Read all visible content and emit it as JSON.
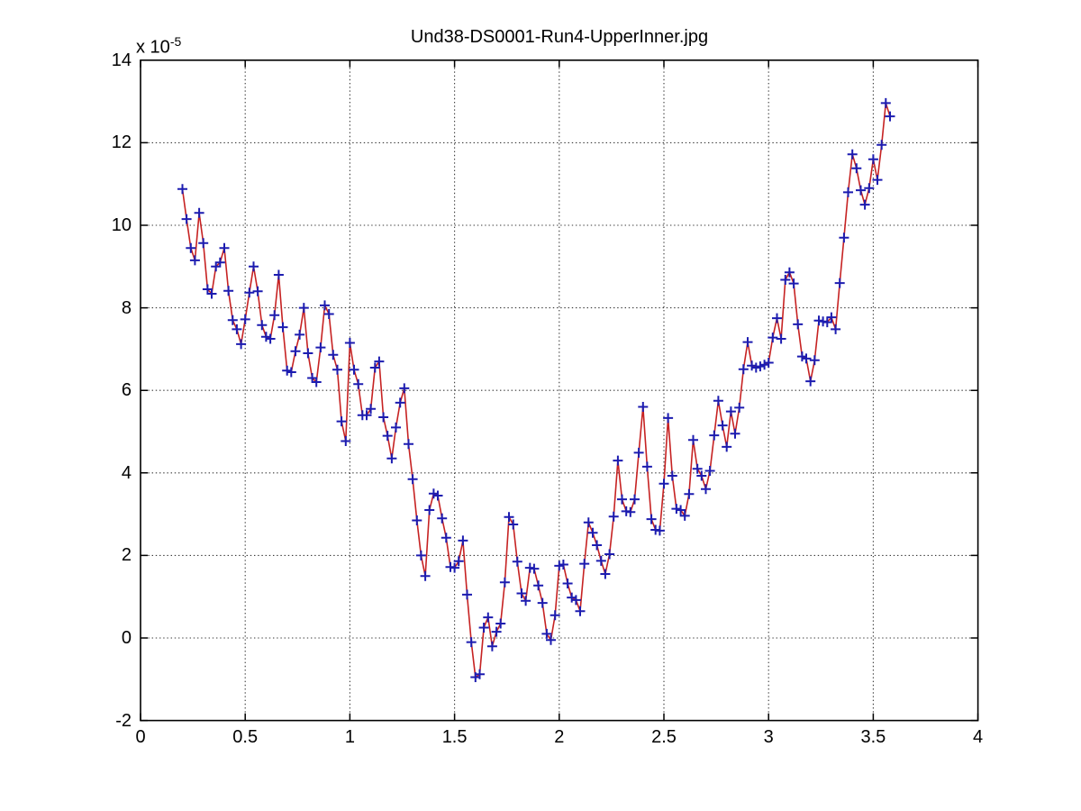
{
  "chart_data": {
    "type": "line",
    "title": "Und38-DS0001-Run4-UpperInner.jpg",
    "y_multiplier_base": "x 10",
    "y_multiplier_exponent": "-5",
    "xlabel": "",
    "ylabel": "",
    "xlim": [
      0,
      4
    ],
    "ylim": [
      -2,
      14
    ],
    "xticks": [
      "0",
      "0.5",
      "1",
      "1.5",
      "2",
      "2.5",
      "3",
      "3.5",
      "4"
    ],
    "xtick_values": [
      0,
      0.5,
      1,
      1.5,
      2,
      2.5,
      3,
      3.5,
      4
    ],
    "yticks": [
      "-2",
      "0",
      "2",
      "4",
      "6",
      "8",
      "10",
      "12",
      "14"
    ],
    "ytick_values": [
      -2,
      0,
      2,
      4,
      6,
      8,
      10,
      12,
      14
    ],
    "grid": true,
    "legend": "none",
    "line_color": "#c62222",
    "marker_color": "#1c1cb0",
    "marker": "+",
    "axis_color": "#000000",
    "grid_color": "#3a3a3a",
    "background_color": "#ffffff",
    "x_start": 0.2,
    "x_step": 0.02,
    "y_values": [
      10.88,
      10.15,
      9.45,
      9.15,
      10.3,
      9.57,
      8.45,
      8.34,
      9.0,
      9.1,
      9.45,
      8.41,
      7.7,
      7.48,
      7.12,
      7.72,
      8.37,
      9.0,
      8.4,
      7.58,
      7.3,
      7.25,
      7.82,
      8.8,
      7.53,
      6.48,
      6.44,
      6.95,
      7.35,
      8.0,
      6.9,
      6.3,
      6.2,
      7.04,
      8.06,
      7.85,
      6.86,
      6.5,
      5.25,
      4.77,
      7.15,
      6.5,
      6.15,
      5.4,
      5.4,
      5.55,
      6.55,
      6.7,
      5.35,
      4.9,
      4.35,
      5.1,
      5.7,
      6.05,
      4.7,
      3.85,
      2.85,
      2.0,
      1.5,
      3.1,
      3.5,
      3.45,
      2.9,
      2.43,
      1.72,
      1.7,
      1.86,
      2.36,
      1.05,
      -0.1,
      -0.95,
      -0.88,
      0.25,
      0.5,
      -0.2,
      0.15,
      0.35,
      1.35,
      2.93,
      2.75,
      1.85,
      1.08,
      0.9,
      1.7,
      1.68,
      1.27,
      0.85,
      0.1,
      -0.05,
      0.55,
      1.75,
      1.78,
      1.32,
      0.98,
      0.92,
      0.65,
      1.8,
      2.8,
      2.55,
      2.25,
      1.87,
      1.55,
      2.03,
      2.94,
      4.3,
      3.36,
      3.07,
      3.05,
      3.36,
      4.49,
      5.6,
      4.15,
      2.88,
      2.62,
      2.6,
      3.74,
      5.33,
      3.93,
      3.13,
      3.1,
      2.96,
      3.49,
      4.8,
      4.1,
      3.93,
      3.61,
      4.05,
      4.91,
      5.75,
      5.15,
      4.63,
      5.49,
      4.95,
      5.58,
      6.51,
      7.17,
      6.6,
      6.55,
      6.58,
      6.62,
      6.67,
      7.28,
      7.75,
      7.25,
      8.68,
      8.86,
      8.59,
      7.6,
      6.82,
      6.77,
      6.22,
      6.73,
      7.69,
      7.67,
      7.65,
      7.77,
      7.48,
      8.6,
      9.7,
      10.8,
      11.72,
      11.38,
      10.85,
      10.5,
      10.9,
      11.6,
      11.1,
      11.95,
      12.96,
      12.64
    ]
  }
}
